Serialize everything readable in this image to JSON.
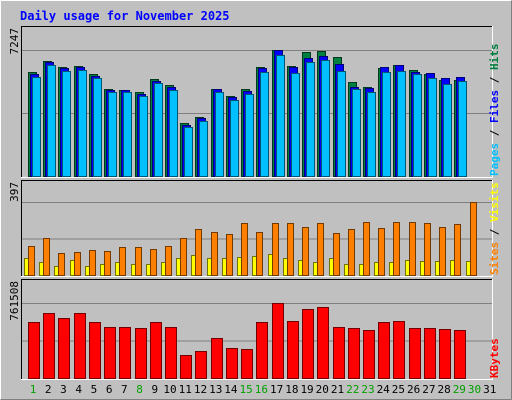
{
  "chart_data": {
    "type": "bar",
    "title": "Daily usage for November 2025",
    "categories": [
      "1",
      "2",
      "3",
      "4",
      "5",
      "6",
      "7",
      "8",
      "9",
      "10",
      "11",
      "12",
      "13",
      "14",
      "15",
      "16",
      "17",
      "18",
      "19",
      "20",
      "21",
      "22",
      "23",
      "24",
      "25",
      "26",
      "27",
      "28",
      "29",
      "30",
      "31"
    ],
    "weekend_days": [
      "1",
      "8",
      "15",
      "16",
      "22",
      "23",
      "29",
      "30"
    ],
    "panels": {
      "top": {
        "max_label": "7247",
        "ymax": 7247,
        "axis_label_parts": [
          "Pages",
          "Files",
          "Hits"
        ],
        "series": [
          {
            "name": "Hits",
            "color": "#008040",
            "values": [
              5960,
              6620,
              6260,
              6320,
              5860,
              5000,
              4970,
              4840,
              5590,
              5220,
              3020,
              3380,
              4990,
              4590,
              4990,
              6270,
              7247,
              6300,
              7130,
              7170,
              6830,
              5420,
              5140,
              6220,
              6390,
              6070,
              5860,
              5520,
              5500,
              0,
              0
            ]
          },
          {
            "name": "Files",
            "color": "#0000FF",
            "values": [
              5850,
              6550,
              6200,
              6290,
              5750,
              4960,
              4930,
              4730,
              5480,
              5120,
              2960,
              3320,
              5020,
              4520,
              4890,
              6210,
              7247,
              6280,
              6790,
              6910,
              6440,
              5130,
              5080,
              6270,
              6370,
              6010,
              5920,
              5650,
              5690,
              0,
              0
            ]
          },
          {
            "name": "Pages",
            "color": "#00C0FF",
            "values": [
              5670,
              6410,
              6050,
              6110,
              5640,
              4850,
              4810,
              4590,
              5360,
              4970,
              2830,
              3180,
              4830,
              4370,
              4710,
              5980,
              6980,
              5940,
              6540,
              6700,
              6020,
              4990,
              4850,
              6000,
              6050,
              5850,
              5610,
              5270,
              5470,
              0,
              0
            ]
          }
        ]
      },
      "middle": {
        "max_label": "397",
        "ymax": 397,
        "axis_label_parts": [
          "Sites",
          "Visits"
        ],
        "series": [
          {
            "name": "Visits",
            "color": "#FFFF00",
            "values": [
              90,
              70,
              50,
              80,
              50,
              60,
              70,
              60,
              60,
              70,
              95,
              110,
              95,
              90,
              100,
              105,
              115,
              95,
              80,
              70,
              90,
              60,
              60,
              70,
              70,
              80,
              75,
              75,
              80,
              75,
              0
            ]
          },
          {
            "name": "Sites",
            "color": "#FF8000",
            "values": [
              160,
              200,
              120,
              125,
              135,
              130,
              150,
              150,
              140,
              155,
              200,
              250,
              235,
              225,
              285,
              235,
              285,
              285,
              260,
              285,
              230,
              250,
              290,
              255,
              290,
              290,
              285,
              260,
              280,
              397,
              0
            ]
          }
        ]
      },
      "bottom": {
        "max_label": "761508",
        "ymax": 761508,
        "axis_label_parts": [
          "KBytes"
        ],
        "series": [
          {
            "name": "KBytes",
            "color": "#FF0000",
            "values": [
              565000,
              658000,
              610000,
              655000,
              568000,
              513000,
              519000,
              505000,
              565000,
              515000,
              236000,
              279000,
              408000,
              302000,
              291000,
              566000,
              761508,
              581000,
              703000,
              716000,
              515000,
              507000,
              492000,
              568000,
              581000,
              508000,
              508000,
              495000,
              490000,
              0,
              0
            ]
          }
        ]
      }
    }
  },
  "colors": {
    "background": "#C0C0C0",
    "panel": "#C0C0C0",
    "grid": "#808080",
    "title": "#0000FF",
    "axis_text": "#000000",
    "weekend_text": "#00A000",
    "pages": "#00C0FF",
    "files": "#0000FF",
    "hits": "#008040",
    "visits": "#FFFF00",
    "sites": "#FF8000",
    "kbytes": "#FF0000"
  }
}
